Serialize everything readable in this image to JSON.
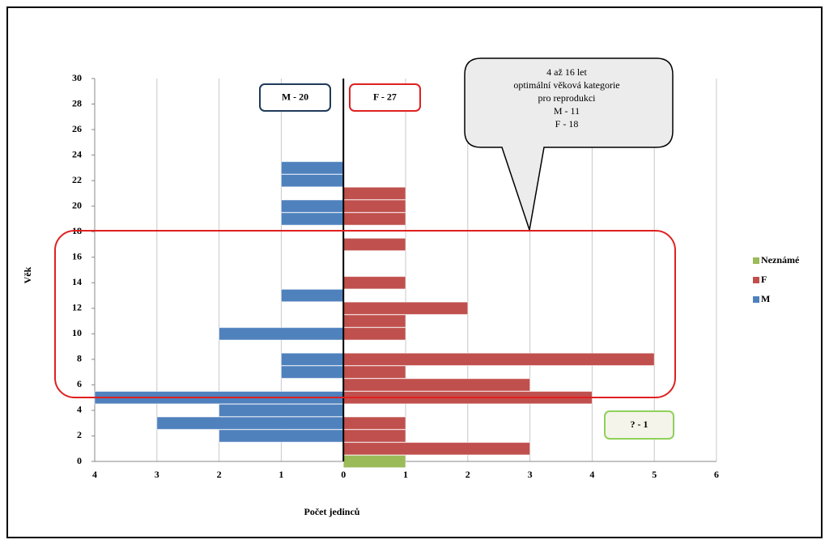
{
  "chart_data": {
    "type": "bar",
    "orientation": "horizontal",
    "x_label": "Počet jedinců",
    "y_label": "Věk",
    "categories": [
      0,
      1,
      2,
      3,
      4,
      5,
      6,
      7,
      8,
      9,
      10,
      11,
      12,
      13,
      14,
      15,
      16,
      17,
      18,
      19,
      20,
      21,
      22,
      23
    ],
    "series": [
      {
        "name": "Neznámé",
        "color": "#9bbb59",
        "values": [
          1,
          0,
          0,
          0,
          0,
          0,
          0,
          0,
          0,
          0,
          0,
          0,
          0,
          0,
          0,
          0,
          0,
          0,
          0,
          0,
          0,
          0,
          0,
          0
        ]
      },
      {
        "name": "F",
        "color": "#c0504d",
        "values": [
          0,
          3,
          1,
          1,
          0,
          4,
          3,
          1,
          5,
          0,
          1,
          1,
          2,
          0,
          1,
          0,
          0,
          1,
          0,
          1,
          1,
          1,
          0,
          0
        ]
      },
      {
        "name": "M",
        "color": "#4f81bd",
        "values": [
          0,
          0,
          -2,
          -3,
          -2,
          -4,
          0,
          -1,
          -1,
          0,
          -2,
          0,
          0,
          -1,
          0,
          0,
          0,
          0,
          0,
          -1,
          -1,
          0,
          -1,
          -1
        ]
      }
    ],
    "xlim": [
      -4,
      6
    ],
    "xticks": [
      {
        "value": -4,
        "label": "4"
      },
      {
        "value": -3,
        "label": "3"
      },
      {
        "value": -2,
        "label": "2"
      },
      {
        "value": -1,
        "label": "1"
      },
      0,
      1,
      2,
      3,
      4,
      5,
      6
    ],
    "ylim": [
      0,
      30
    ],
    "yticks": [
      0,
      2,
      4,
      6,
      8,
      10,
      12,
      14,
      16,
      18,
      20,
      22,
      24,
      26,
      28,
      30
    ],
    "grid": true,
    "legend": "right",
    "annotations": [
      "M - 20",
      "F - 27",
      "? - 1"
    ],
    "callout": [
      "4 až 16 let",
      "optimální věková kategorie",
      "pro reprodukci",
      "M - 11",
      "F - 18"
    ]
  }
}
